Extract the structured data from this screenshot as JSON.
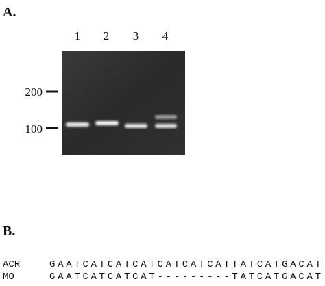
{
  "panel_a": {
    "label": "A.",
    "lanes": [
      "1",
      "2",
      "3",
      "4"
    ],
    "markers": [
      "200",
      "100"
    ]
  },
  "panel_b": {
    "label": "B.",
    "alignment": [
      {
        "name": "ACR",
        "sequence": "GAATCATCATCATCATCATCATTATCATGACAT"
      },
      {
        "name": "MO",
        "sequence": "GAATCATCATCAT---------TATCATGACAT"
      }
    ]
  }
}
